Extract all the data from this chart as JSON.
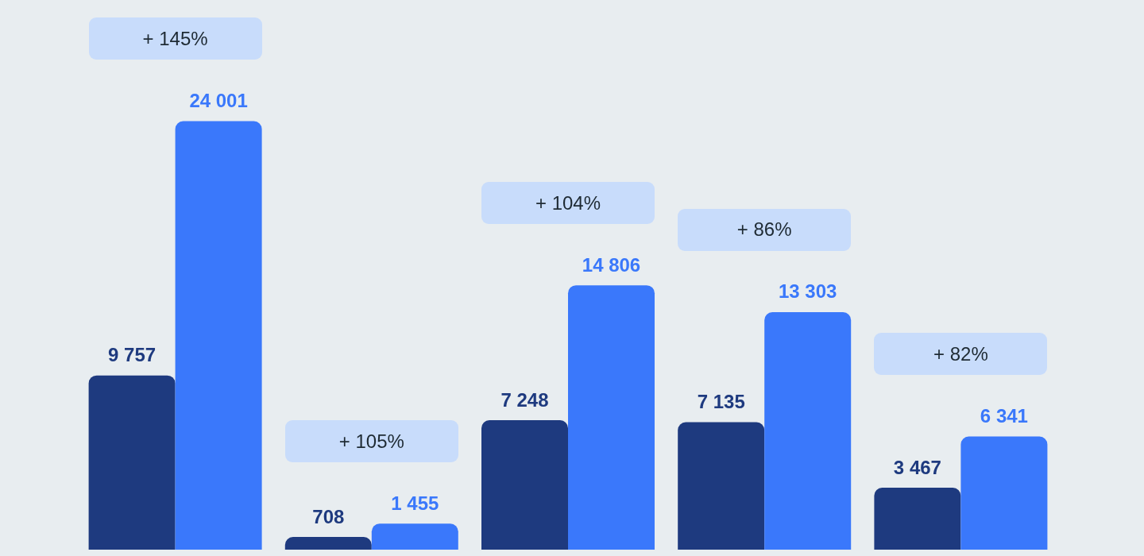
{
  "chart_data": {
    "type": "bar",
    "categories": [
      null,
      null,
      null,
      null,
      null
    ],
    "series": [
      {
        "color": "#1e3a7f",
        "values": [
          9757,
          708,
          7248,
          7135,
          3467
        ],
        "value_labels": [
          "9 757",
          "708",
          "7 248",
          "7 135",
          "3 467"
        ]
      },
      {
        "color": "#3a78fb",
        "values": [
          24001,
          1455,
          14806,
          13303,
          6341
        ],
        "value_labels": [
          "24 001",
          "1 455",
          "14 806",
          "13 303",
          "6 341"
        ]
      }
    ],
    "annotations": [
      "+ 145%",
      "+ 105%",
      "+ 104%",
      "+ 86%",
      "+ 82%"
    ]
  }
}
